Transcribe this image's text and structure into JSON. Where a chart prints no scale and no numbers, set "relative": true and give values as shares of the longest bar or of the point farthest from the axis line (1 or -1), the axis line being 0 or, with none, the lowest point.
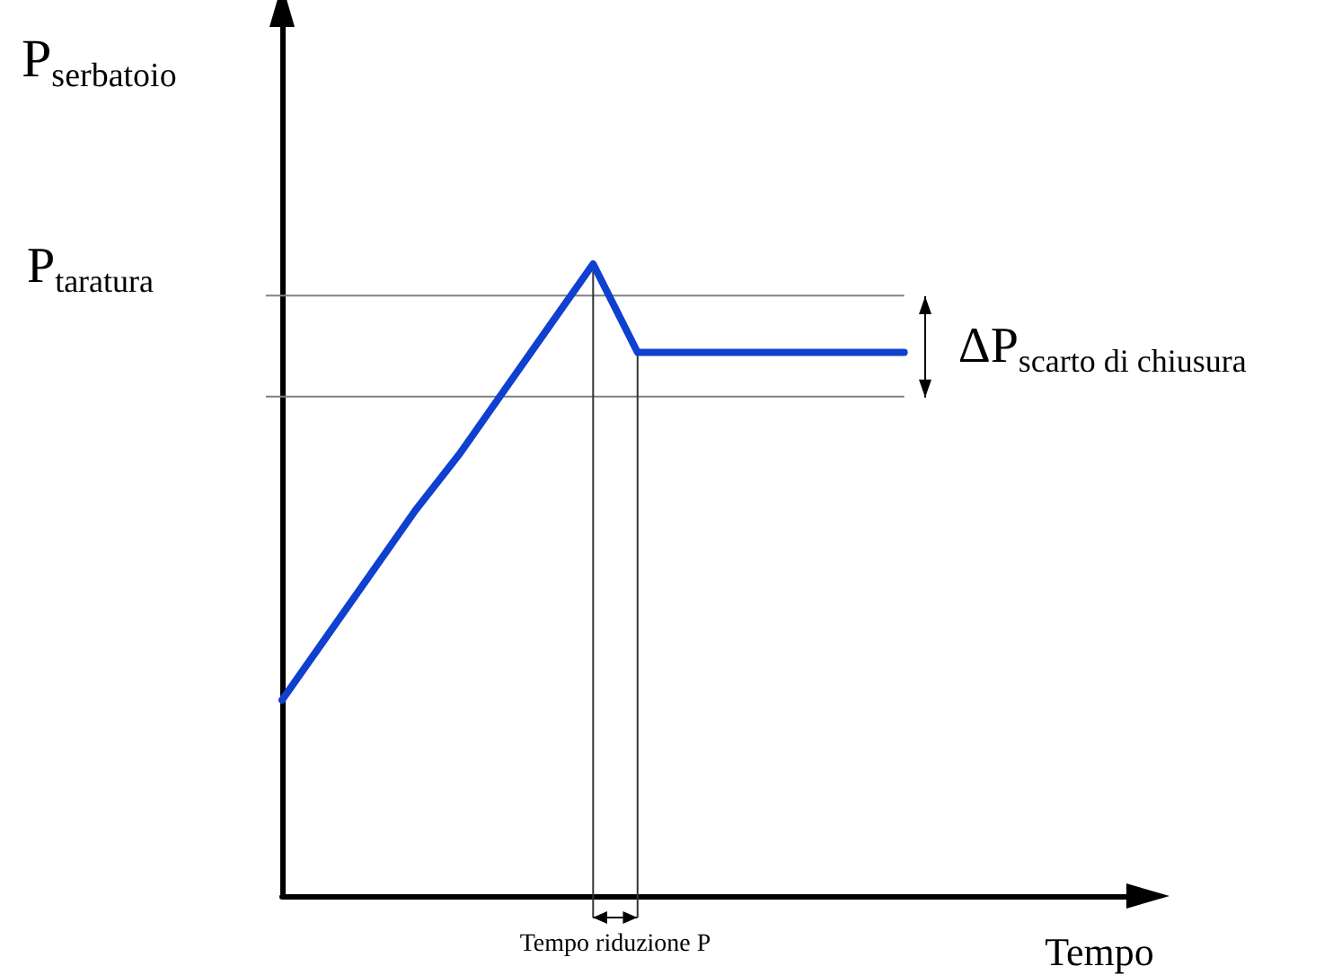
{
  "chart_data": {
    "type": "line",
    "relative": true,
    "xlabel": "Tempo",
    "ylabel": "P$_{serbatoio}$",
    "categories": [
      null,
      null,
      null,
      null,
      null,
      null,
      null,
      null,
      null,
      null,
      null,
      null,
      null,
      null,
      null,
      null,
      null,
      null,
      null,
      null
    ],
    "series": [
      {
        "color": "#1040d0",
        "values": [
          0.31,
          0.41,
          0.51,
          0.61,
          0.7,
          0.8,
          0.9,
          1,
          0.86,
          0.86,
          0.86,
          0.86,
          0.86,
          0.86,
          0.86,
          null,
          null,
          null,
          null,
          null
        ]
      }
    ],
    "marker": "none",
    "line_style": "solid",
    "ref_lines": [
      {
        "axis": "y",
        "value": 0.95,
        "label": "P$_{taratura}$",
        "color": "#808080"
      },
      {
        "axis": "y",
        "value": 0.79,
        "color": "#808080"
      }
    ],
    "annotations": [
      "ΔP$_{scarto di chiusura}$",
      "Tempo riduzione P"
    ]
  }
}
